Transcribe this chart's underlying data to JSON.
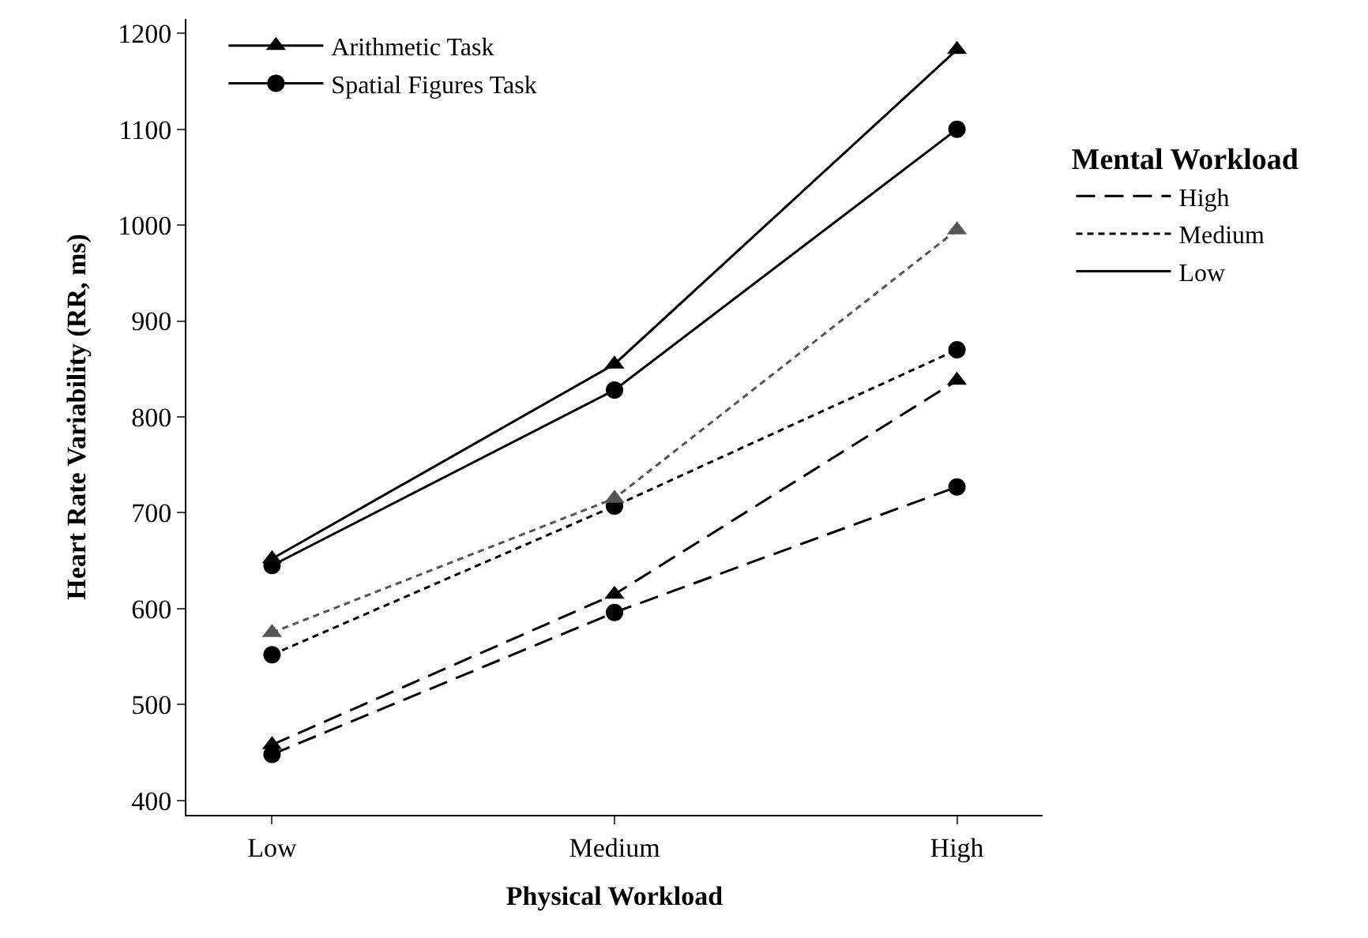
{
  "chart_data": {
    "type": "line",
    "xlabel": "Physical Workload",
    "ylabel": "Heart Rate Variability (RR, ms)",
    "legend_title": "Mental Workload",
    "categories": [
      "Low",
      "Medium",
      "High"
    ],
    "series": [
      {
        "color": "#000000",
        "marker": "triangle",
        "line_style": "dashed",
        "values": [
          458,
          615,
          838
        ]
      },
      {
        "color": "#555555",
        "marker": "triangle",
        "line_style": "dotted",
        "values": [
          575,
          715,
          995
        ]
      },
      {
        "name": "Arithmetic Task",
        "color": "#000000",
        "marker": "triangle",
        "line_style": "solid",
        "values": [
          652,
          855,
          1183
        ]
      },
      {
        "color": "#000000",
        "marker": "circle",
        "line_style": "dashed",
        "values": [
          448,
          596,
          727
        ]
      },
      {
        "color": "#000000",
        "marker": "circle",
        "line_style": "dotted",
        "values": [
          552,
          707,
          870
        ]
      },
      {
        "name": "Spatial Figures Task",
        "color": "#000000",
        "marker": "circle",
        "line_style": "solid",
        "values": [
          645,
          828,
          1100
        ]
      }
    ],
    "annotations": [
      "High",
      "Medium",
      "Low"
    ],
    "ylim": [
      385,
      1215
    ],
    "yticks": [
      400,
      500,
      600,
      700,
      800,
      900,
      1000,
      1100,
      1200
    ],
    "legend": "top left"
  }
}
